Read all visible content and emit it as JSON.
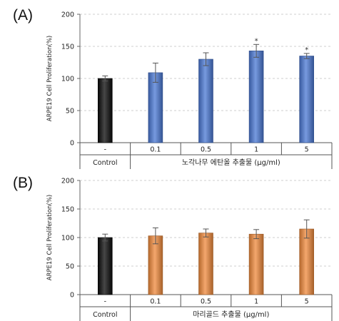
{
  "figure": {
    "panel_labels": [
      "(A)",
      "(B)"
    ]
  },
  "chart_data": [
    {
      "type": "bar",
      "panel": "(A)",
      "ylabel": "ARPE19 Cell Proliferation(%)",
      "ylim": [
        0,
        200
      ],
      "yticks": [
        0,
        50,
        100,
        150,
        200
      ],
      "grid": true,
      "categories": [
        "-",
        "0.1",
        "0.5",
        "1",
        "5"
      ],
      "group_labels": [
        "Control",
        "노각나무 에탄올 추출물 (µg/ml)"
      ],
      "values": [
        100,
        109,
        130,
        143,
        135
      ],
      "errors": [
        4,
        15,
        10,
        10,
        4
      ],
      "significance": [
        "",
        "",
        "",
        "*",
        "*"
      ],
      "colors": [
        "#0a0a0a",
        "#4a78d4",
        "#4a78d4",
        "#4a78d4",
        "#4a78d4"
      ]
    },
    {
      "type": "bar",
      "panel": "(B)",
      "ylabel": "ARPE19 Cell Proliferation(%)",
      "ylim": [
        0,
        200
      ],
      "yticks": [
        0,
        50,
        100,
        150,
        200
      ],
      "grid": true,
      "categories": [
        "-",
        "0.1",
        "0.5",
        "1",
        "5"
      ],
      "group_labels": [
        "Control",
        "마리골드 추출물 (µg/ml)"
      ],
      "values": [
        100,
        103,
        108,
        106,
        115
      ],
      "errors": [
        6,
        14,
        7,
        8,
        16
      ],
      "significance": [
        "",
        "",
        "",
        "",
        ""
      ],
      "colors": [
        "#0a0a0a",
        "#f08a3c",
        "#f08a3c",
        "#f08a3c",
        "#f08a3c"
      ]
    }
  ]
}
